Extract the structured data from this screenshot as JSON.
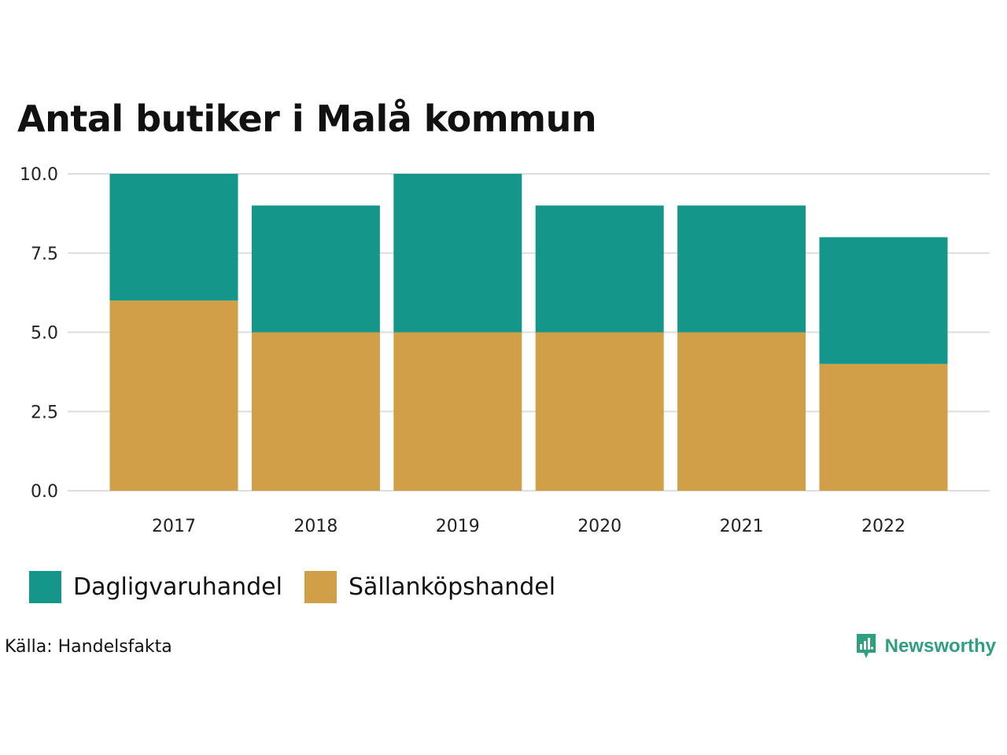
{
  "chart_data": {
    "type": "bar",
    "stacked": true,
    "title": "Antal butiker i Malå kommun",
    "categories": [
      "2017",
      "2018",
      "2019",
      "2020",
      "2021",
      "2022"
    ],
    "series": [
      {
        "name": "Sällanköpshandel",
        "color": "#d19f47",
        "values": [
          6,
          5,
          5,
          5,
          5,
          4
        ]
      },
      {
        "name": "Dagligvaruhandel",
        "color": "#15968a",
        "values": [
          4,
          4,
          5,
          4,
          4,
          4
        ]
      }
    ],
    "ylim": [
      0,
      10
    ],
    "yticks": [
      "0.0",
      "2.5",
      "5.0",
      "7.5",
      "10.0"
    ],
    "ytick_values": [
      0,
      2.5,
      5,
      7.5,
      10
    ],
    "grid": true,
    "xlabel": "",
    "ylabel": "",
    "legend": [
      {
        "label": "Dagligvaruhandel",
        "color": "#15968a"
      },
      {
        "label": "Sällanköpshandel",
        "color": "#d19f47"
      }
    ],
    "legend_position": "bottom-left"
  },
  "footer": {
    "source": "Källa: Handelsfakta",
    "brand": "Newsworthy",
    "brand_icon": "newsworthy-logo-icon",
    "brand_color": "#2e9f80"
  }
}
